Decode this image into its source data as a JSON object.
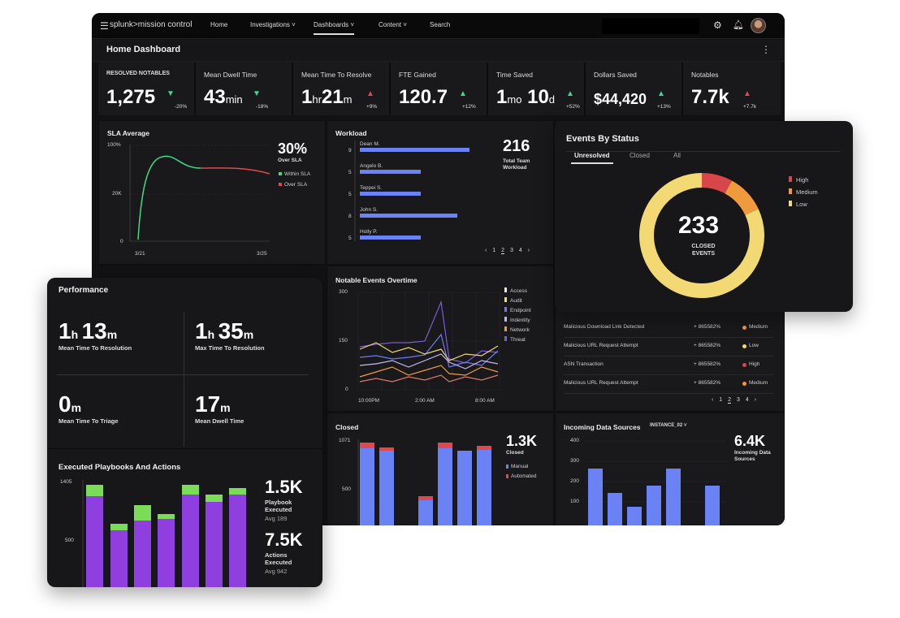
{
  "nav": {
    "brand": "splunk>mission control",
    "items": [
      "Home",
      "Investigations",
      "Dashboards",
      "Content",
      "Search"
    ]
  },
  "page_title": "Home Dashboard",
  "kpis": [
    {
      "label": "RESOLVED NOTABLES",
      "value": "1,275",
      "unit": "",
      "change": "-20%",
      "dir": "down"
    },
    {
      "label": "Mean Dwell Time",
      "value": "43",
      "unit": "min",
      "change": "-18%",
      "dir": "down"
    },
    {
      "label": "Mean Time To Resolve",
      "value": "1",
      "unit": "hr",
      "value2": "21",
      "unit2": "m",
      "change": "+9%",
      "dir": "up-red"
    },
    {
      "label": "FTE Gained",
      "value": "120.7",
      "unit": "",
      "change": "+12%",
      "dir": "up"
    },
    {
      "label": "Time Saved",
      "value": "1",
      "unit": "mo",
      "value2": "10",
      "unit2": "d",
      "change": "+52%",
      "dir": "up"
    },
    {
      "label": "Dollars Saved",
      "value": "$44,420",
      "unit": "",
      "change": "+13%",
      "dir": "up"
    },
    {
      "label": "Notables",
      "value": "7.7k",
      "unit": "",
      "change": "+7.7k",
      "dir": "up-red"
    }
  ],
  "sla": {
    "title": "SLA Average",
    "big": "30%",
    "big_sub": "Over SLA",
    "legend": [
      "Within SLA",
      "Over SLA"
    ],
    "yticks": [
      "100%",
      "20K",
      "0"
    ],
    "xticks": [
      "3/21",
      "3/25"
    ]
  },
  "workload": {
    "title": "Workload",
    "big": "216",
    "big_sub": "Total Team Workload",
    "people": [
      {
        "name": "Dean M.",
        "count": "9",
        "value": 9
      },
      {
        "name": "Angelo B.",
        "count": "5",
        "value": 5
      },
      {
        "name": "Teppei S.",
        "count": "5",
        "value": 5
      },
      {
        "name": "John S.",
        "count": "8",
        "value": 8
      },
      {
        "name": "Holly P.",
        "count": "5",
        "value": 5
      }
    ],
    "pagination": [
      "‹",
      "1",
      "2",
      "3",
      "4",
      "›"
    ]
  },
  "events_status": {
    "title": "Events By Status",
    "tabs": [
      "Unresolved",
      "Closed",
      "All"
    ],
    "center_value": "233",
    "center_label": "CLOSED EVENTS",
    "legend": [
      {
        "label": "High",
        "color": "#d9464a",
        "value": 8
      },
      {
        "label": "Medium",
        "color": "#f09a3e",
        "value": 10
      },
      {
        "label": "Low",
        "color": "#f2d974",
        "value": 82
      }
    ]
  },
  "notable_events": {
    "title": "Notable Events Overtime",
    "yticks": [
      "300",
      "150",
      "0"
    ],
    "xticks": [
      "10:00PM",
      "2:00 AM",
      "8:00 AM"
    ],
    "legend": [
      {
        "label": "Access",
        "color": "#e8e8e8"
      },
      {
        "label": "Audit",
        "color": "#f2d974"
      },
      {
        "label": "Endpoint",
        "color": "#6b7cf0"
      },
      {
        "label": "Indentity",
        "color": "#c8b6f0"
      },
      {
        "label": "Network",
        "color": "#f09a3e"
      },
      {
        "label": "Threat",
        "color": "#7b5cd6"
      }
    ]
  },
  "event_list": {
    "rows": [
      {
        "name": "Malicious Download Link Detected",
        "pct": "+ 865582%",
        "sev": "Medium",
        "color": "#f09a3e"
      },
      {
        "name": "Malicious URL Request Attempt",
        "pct": "+ 865582%",
        "sev": "Low",
        "color": "#f2d974"
      },
      {
        "name": "ASN Transaction",
        "pct": "+ 865582%",
        "sev": "High",
        "color": "#d9464a"
      },
      {
        "name": "Malicious URL Request Attempt",
        "pct": "+ 865582%",
        "sev": "Medium",
        "color": "#f09a3e"
      }
    ],
    "pagination": [
      "‹",
      "1",
      "2",
      "3",
      "4",
      "›"
    ]
  },
  "closed": {
    "title": "Closed",
    "big": "1.3K",
    "big_sub": "Closed",
    "legend": [
      "Manual",
      "Automated"
    ],
    "yticks": [
      "1071",
      "500"
    ]
  },
  "incoming": {
    "title": "Incoming Data Sources",
    "instance": "INSTANCE_02 ˅",
    "big": "6.4K",
    "big_sub": "Incoming Data Sources",
    "yticks": [
      "400",
      "300",
      "200",
      "100"
    ]
  },
  "performance": {
    "title": "Performance",
    "metrics": [
      {
        "h": "1",
        "hu": "h",
        "m": "13",
        "mu": "m",
        "label": "Mean Time To Resolution"
      },
      {
        "h": "1",
        "hu": "h",
        "m": "35",
        "mu": "m",
        "label": "Max Time To Resolution"
      },
      {
        "h": "",
        "hu": "",
        "m": "0",
        "mu": "m",
        "label": "Mean Time To Triage"
      },
      {
        "h": "",
        "hu": "",
        "m": "17",
        "mu": "m",
        "label": "Mean Dwell Time"
      }
    ]
  },
  "playbooks": {
    "title": "Executed Playbooks And Actions",
    "yticks": [
      "1405",
      "500"
    ],
    "big1": "1.5K",
    "big1_sub": "Playbook Executed",
    "big1_avg": "Avg 189",
    "big2": "7.5K",
    "big2_sub": "Actions Executed",
    "big2_avg": "Avg 942"
  },
  "chart_data": [
    {
      "type": "bar",
      "title": "Workload",
      "categories": [
        "Dean M.",
        "Angelo B.",
        "Teppei S.",
        "John S.",
        "Holly P."
      ],
      "values": [
        9,
        5,
        5,
        8,
        5
      ]
    },
    {
      "type": "pie",
      "title": "Events By Status",
      "categories": [
        "High",
        "Medium",
        "Low"
      ],
      "values": [
        8,
        10,
        82
      ]
    }
  ],
  "colors": {
    "accent_green": "#3ddc84",
    "accent_red": "#e0484d",
    "bar_blue": "#6b82f5",
    "bar_purple": "#8f3fe0",
    "bar_green": "#7bdc5a"
  }
}
